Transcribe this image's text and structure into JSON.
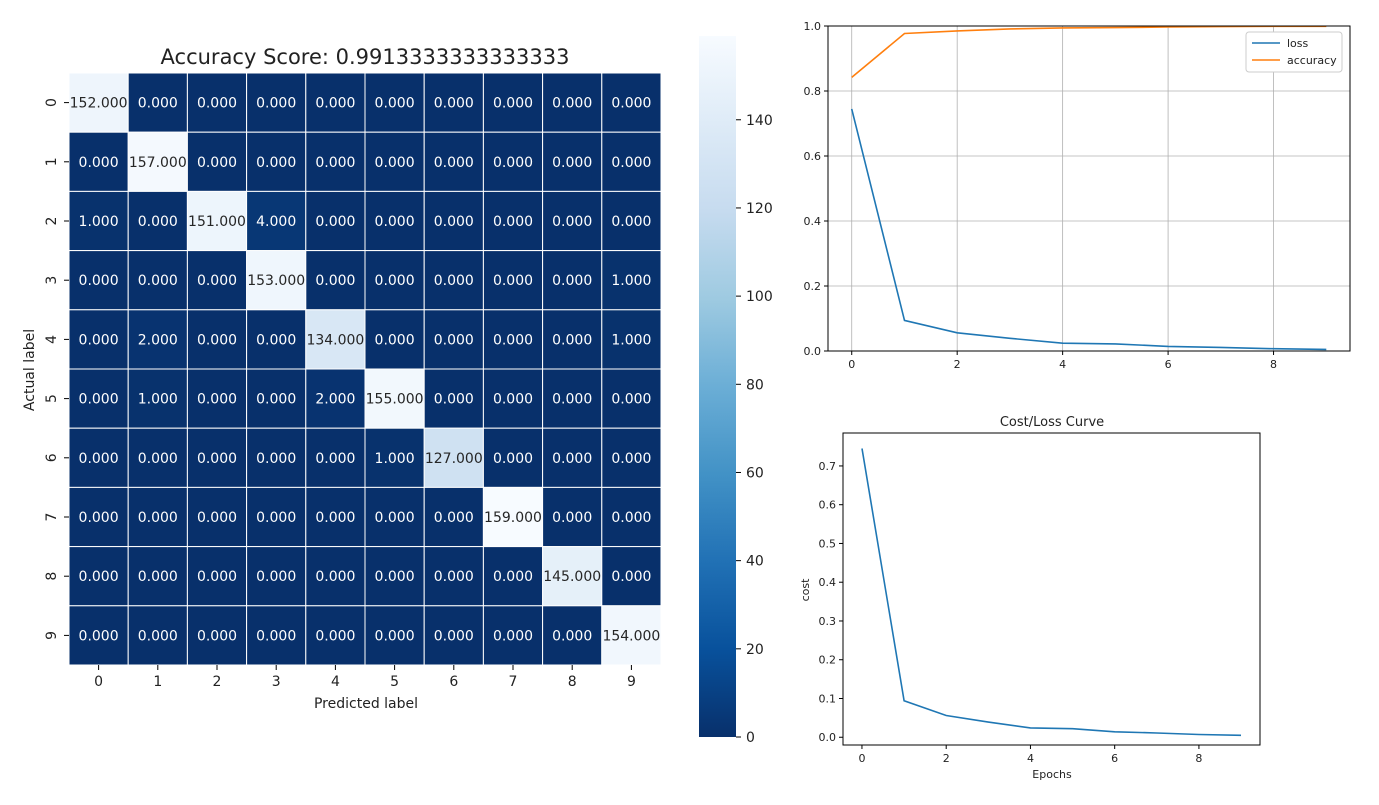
{
  "chart_data": [
    {
      "type": "heatmap",
      "title": "Accuracy Score: 0.9913333333333333",
      "xlabel": "Predicted label",
      "ylabel": "Actual label",
      "x_categories": [
        "0",
        "1",
        "2",
        "3",
        "4",
        "5",
        "6",
        "7",
        "8",
        "9"
      ],
      "y_categories": [
        "0",
        "1",
        "2",
        "3",
        "4",
        "5",
        "6",
        "7",
        "8",
        "9"
      ],
      "values": [
        [
          152,
          0,
          0,
          0,
          0,
          0,
          0,
          0,
          0,
          0
        ],
        [
          0,
          157,
          0,
          0,
          0,
          0,
          0,
          0,
          0,
          0
        ],
        [
          1,
          0,
          151,
          4,
          0,
          0,
          0,
          0,
          0,
          0
        ],
        [
          0,
          0,
          0,
          153,
          0,
          0,
          0,
          0,
          0,
          1
        ],
        [
          0,
          2,
          0,
          0,
          134,
          0,
          0,
          0,
          0,
          1
        ],
        [
          0,
          1,
          0,
          0,
          2,
          155,
          0,
          0,
          0,
          0
        ],
        [
          0,
          0,
          0,
          0,
          0,
          1,
          127,
          0,
          0,
          0
        ],
        [
          0,
          0,
          0,
          0,
          0,
          0,
          0,
          159,
          0,
          0
        ],
        [
          0,
          0,
          0,
          0,
          0,
          0,
          0,
          0,
          145,
          0
        ],
        [
          0,
          0,
          0,
          0,
          0,
          0,
          0,
          0,
          0,
          154
        ]
      ],
      "value_format": "3 decimals",
      "colormap": "Blues_r",
      "colorbar": {
        "range": [
          0,
          159
        ],
        "ticks": [
          0,
          20,
          40,
          60,
          80,
          100,
          120,
          140
        ]
      },
      "grid": true
    },
    {
      "type": "line",
      "title": "",
      "xlabel": "",
      "ylabel": "",
      "x": [
        0,
        1,
        2,
        3,
        4,
        5,
        6,
        7,
        8,
        9
      ],
      "series": [
        {
          "name": "loss",
          "color": "#1f77b4",
          "values": [
            0.745,
            0.094,
            0.056,
            0.039,
            0.024,
            0.022,
            0.014,
            0.011,
            0.007,
            0.005
          ]
        },
        {
          "name": "accuracy",
          "color": "#ff7f0e",
          "values": [
            0.842,
            0.977,
            0.985,
            0.991,
            0.994,
            0.995,
            0.997,
            0.998,
            0.999,
            0.999
          ]
        }
      ],
      "xlim": [
        -0.45,
        9.45
      ],
      "ylim": [
        0,
        1
      ],
      "xticks": [
        0,
        2,
        4,
        6,
        8
      ],
      "yticks": [
        0.0,
        0.2,
        0.4,
        0.6,
        0.8,
        1.0
      ],
      "grid": true,
      "legend_position": "top-right"
    },
    {
      "type": "line",
      "title": "Cost/Loss Curve",
      "xlabel": "Epochs",
      "ylabel": "cost",
      "x": [
        0,
        1,
        2,
        3,
        4,
        5,
        6,
        7,
        8,
        9
      ],
      "series": [
        {
          "color": "#1f77b4",
          "values": [
            0.745,
            0.094,
            0.056,
            0.039,
            0.024,
            0.022,
            0.014,
            0.011,
            0.007,
            0.005
          ]
        }
      ],
      "xlim": [
        -0.45,
        9.45
      ],
      "ylim": [
        -0.02,
        0.785
      ],
      "xticks": [
        0,
        2,
        4,
        6,
        8
      ],
      "yticks": [
        0.0,
        0.1,
        0.2,
        0.3,
        0.4,
        0.5,
        0.6,
        0.7
      ],
      "grid": false
    }
  ]
}
